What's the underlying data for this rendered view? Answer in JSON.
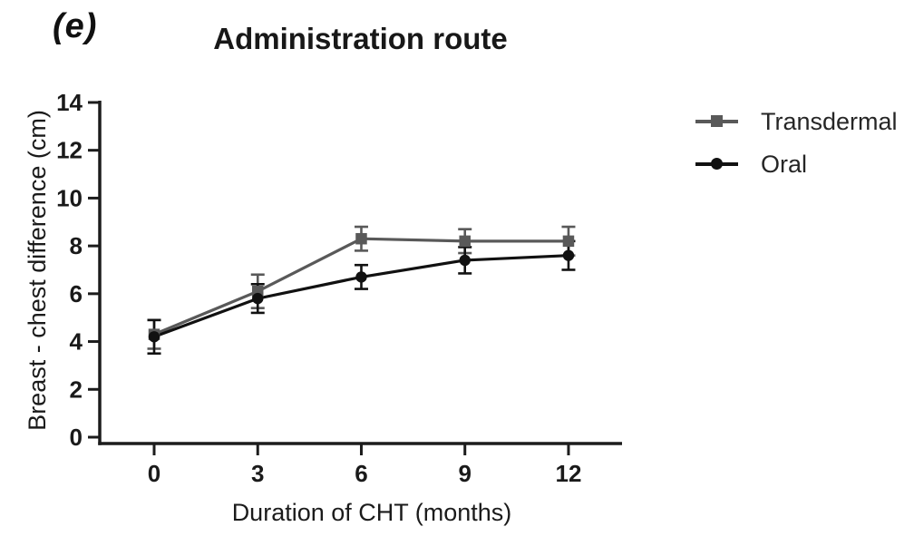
{
  "panel_label": "(e)",
  "chart_data": {
    "type": "line",
    "title": "Administration route",
    "xlabel": "Duration of CHT (months)",
    "ylabel": "Breast - chest difference (cm)",
    "x": [
      0,
      3,
      6,
      9,
      12
    ],
    "x_tick_labels": [
      "0",
      "3",
      "6",
      "9",
      "12"
    ],
    "y_ticks": [
      0,
      2,
      4,
      6,
      8,
      10,
      12,
      14
    ],
    "xlim": [
      -1.6,
      13.6
    ],
    "ylim": [
      0,
      14
    ],
    "grid": false,
    "legend_position": "right",
    "error_bars": true,
    "series": [
      {
        "name": "Transdermal",
        "marker": "square",
        "color": "#595959",
        "values": [
          4.3,
          6.1,
          8.3,
          8.2,
          8.2
        ],
        "errors": [
          0.6,
          0.7,
          0.5,
          0.5,
          0.6
        ]
      },
      {
        "name": "Oral",
        "marker": "circle",
        "color": "#111111",
        "values": [
          4.2,
          5.8,
          6.7,
          7.4,
          7.6
        ],
        "errors": [
          0.7,
          0.6,
          0.5,
          0.55,
          0.6
        ]
      }
    ],
    "colors": {
      "axis": "#1c1c1c",
      "tick_text": "#1a1a1a"
    }
  }
}
